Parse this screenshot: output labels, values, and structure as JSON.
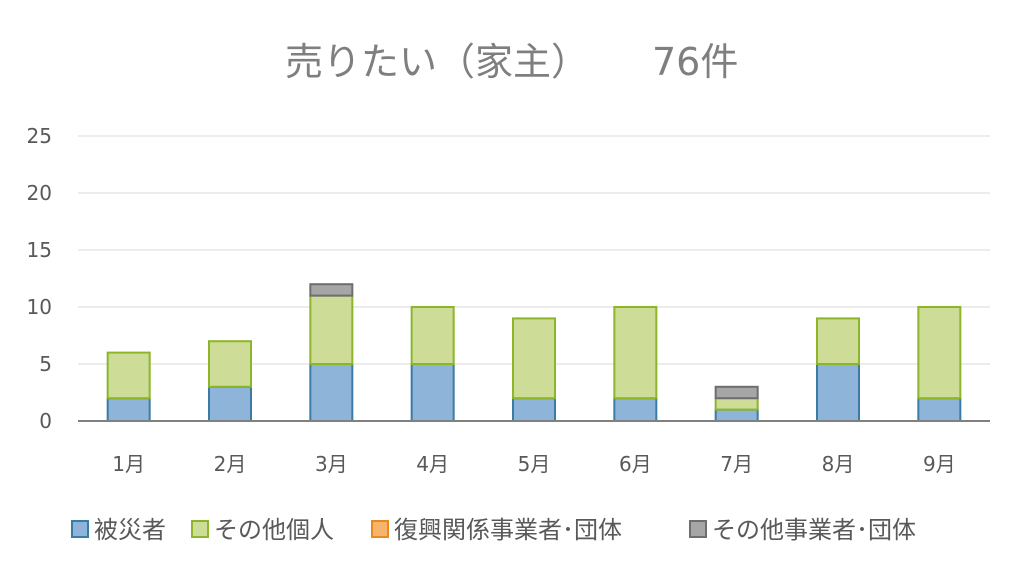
{
  "chart_data": {
    "type": "bar",
    "stacked": true,
    "title": "売りたい（家主）",
    "title_count": "76件",
    "xlabel": "",
    "ylabel": "",
    "ylim": [
      0,
      25
    ],
    "yticks": [
      "0",
      "5",
      "10",
      "15",
      "20",
      "25"
    ],
    "ytick_values": [
      0,
      5,
      10,
      15,
      20,
      25
    ],
    "grid": true,
    "legend_position": "bottom",
    "categories": [
      "1月",
      "2月",
      "3月",
      "4月",
      "5月",
      "6月",
      "7月",
      "8月",
      "9月"
    ],
    "series": [
      {
        "name": "被災者",
        "values": [
          2,
          3,
          5,
          5,
          2,
          2,
          1,
          5,
          2
        ],
        "fill": "#8fb4d9",
        "stroke": "#3b7ca5"
      },
      {
        "name": "その他個人",
        "values": [
          4,
          4,
          6,
          5,
          7,
          8,
          1,
          4,
          8
        ],
        "fill": "#cddc96",
        "stroke": "#8db52a"
      },
      {
        "name": "復興関係事業者･団体",
        "values": [
          0,
          0,
          0,
          0,
          0,
          0,
          0,
          0,
          0
        ],
        "fill": "#f9b46b",
        "stroke": "#e88a22"
      },
      {
        "name": "その他事業者･団体",
        "values": [
          0,
          0,
          1,
          0,
          0,
          0,
          1,
          0,
          0
        ],
        "fill": "#a6a6a6",
        "stroke": "#6e6e6e"
      }
    ]
  }
}
